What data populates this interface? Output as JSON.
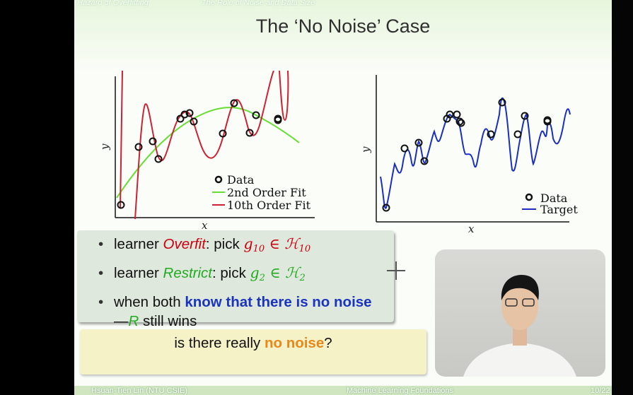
{
  "header": {
    "section": "Hazard of Overfitting",
    "subsection": "The Role of Noise and Data Size"
  },
  "title": "The ‘No Noise’ Case",
  "left_plot": {
    "xlabel": "x",
    "ylabel": "y",
    "legend": [
      "Data",
      "2nd Order Fit",
      "10th Order Fit"
    ],
    "colors": {
      "data": "#111111",
      "second": "#66dd33",
      "tenth": "#cc2233"
    }
  },
  "right_plot": {
    "xlabel": "x",
    "ylabel": "y",
    "legend": [
      "Data",
      "Target"
    ],
    "colors": {
      "data": "#111111",
      "target": "#1a2fbf"
    }
  },
  "bullets": {
    "b1": {
      "pre": "learner ",
      "name": "Overfit",
      "mid": ": pick ",
      "g": "g",
      "gsub": "10",
      "in": " ∈ ",
      "h": "ℋ",
      "hsub": "10"
    },
    "b2": {
      "pre": "learner ",
      "name": "Restrict",
      "mid": ": pick ",
      "g": "g",
      "gsub": "2",
      "in": " ∈ ",
      "h": "ℋ",
      "hsub": "2"
    },
    "b3": {
      "pre": "when both ",
      "bold": "know that there is no noise",
      "dash": " —",
      "r": "R",
      "post": " still wins"
    }
  },
  "question": {
    "pre": "is there really ",
    "bold": "no noise",
    "post": "?"
  },
  "footer": {
    "author": "Hsuan-Tien Lin  (NTU CSIE)",
    "course": "Machine Learning Foundations",
    "page": "10/22"
  }
}
